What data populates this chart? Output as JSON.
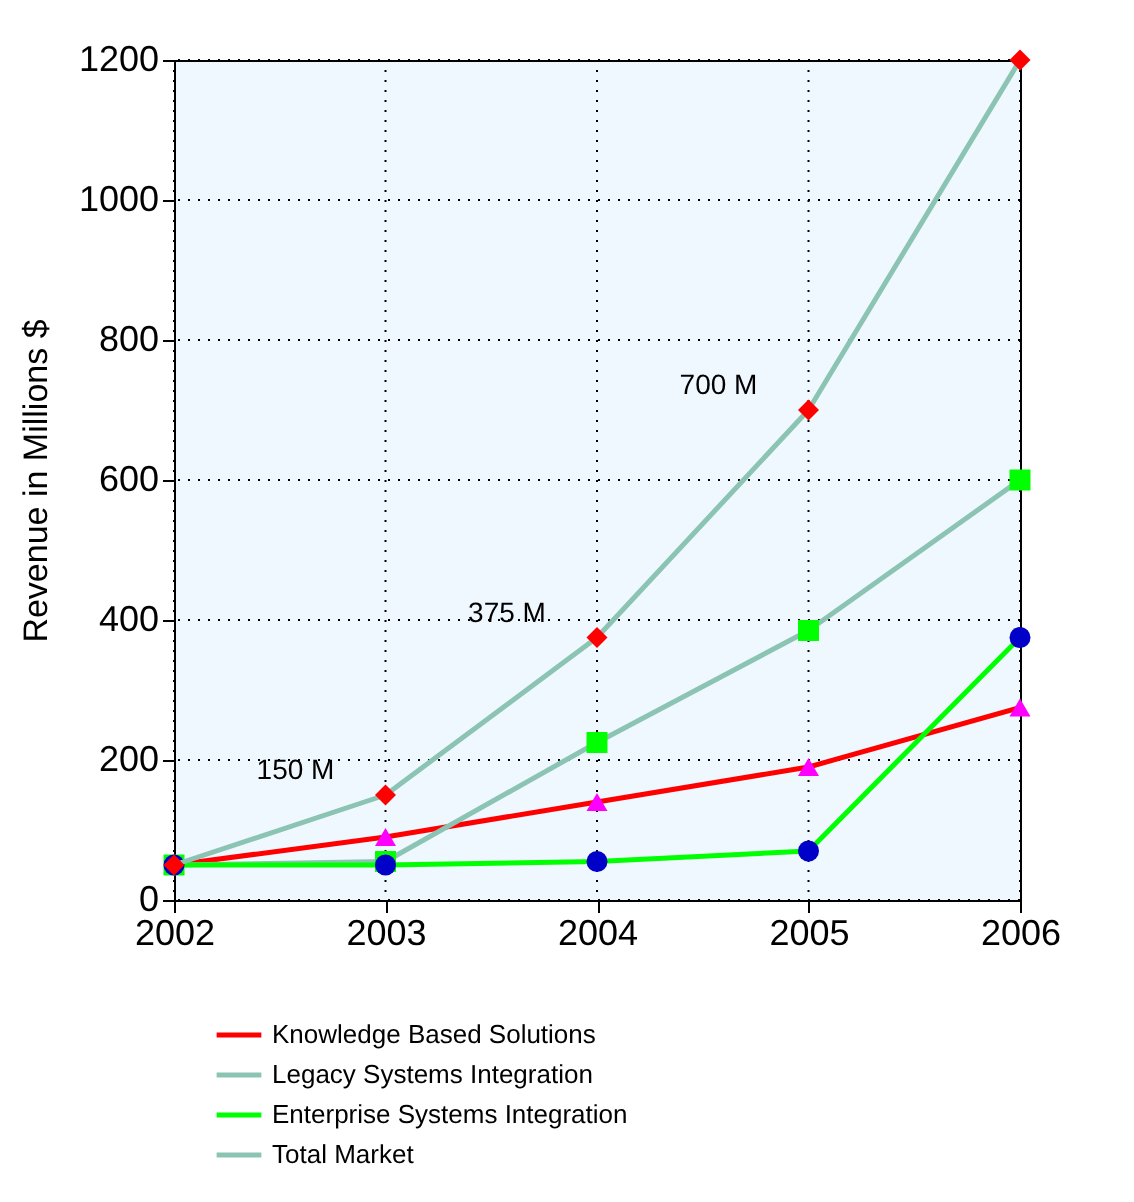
{
  "chart_data": {
    "type": "line",
    "ylabel": "Revenue in Millions $",
    "categories": [
      "2002",
      "2003",
      "2004",
      "2005",
      "2006"
    ],
    "series": [
      {
        "name": "Knowledge Based Solutions",
        "color": "#ff0000",
        "colors": [
          "#ff00ff",
          "#ff00ff",
          "#ff00ff",
          "#ff00ff",
          "#ff00ff"
        ],
        "marker": "triangle",
        "values": [
          50,
          90,
          140,
          190,
          275
        ]
      },
      {
        "name": "Legacy Systems Integration",
        "color": "#8cc4b4",
        "colors": [
          "#00ff00",
          "#00ff00",
          "#00ff00",
          "#00ff00",
          "#00ff00"
        ],
        "marker": "square",
        "values": [
          50,
          55,
          225,
          385,
          600
        ]
      },
      {
        "name": "Enterprise Systems Integration",
        "color": "#00ff00",
        "colors": [
          "#0000c8",
          "#0000c8",
          "#0000c8",
          "#0000c8",
          "#0000c8"
        ],
        "marker": "circle",
        "values": [
          50,
          50,
          55,
          70,
          375
        ]
      },
      {
        "name": "Total Market",
        "color": "#8cc4b4",
        "colors": [
          "#ff0000",
          "#ff0000",
          "#ff0000",
          "#ff0000",
          "#ff0000"
        ],
        "marker": "diamond",
        "values": [
          50,
          150,
          375,
          700,
          1200
        ]
      }
    ],
    "annotations": [
      {
        "text": "150 M",
        "x": "2003",
        "y": 150
      },
      {
        "text": "375 M",
        "x": "2004",
        "y": 375
      },
      {
        "text": "700 M",
        "x": "2005",
        "y": 700
      }
    ],
    "ylim": [
      0,
      1200
    ],
    "yticks": [
      0,
      200,
      400,
      600,
      800,
      1000,
      1200
    ],
    "grid": true,
    "legend": "bottom"
  }
}
